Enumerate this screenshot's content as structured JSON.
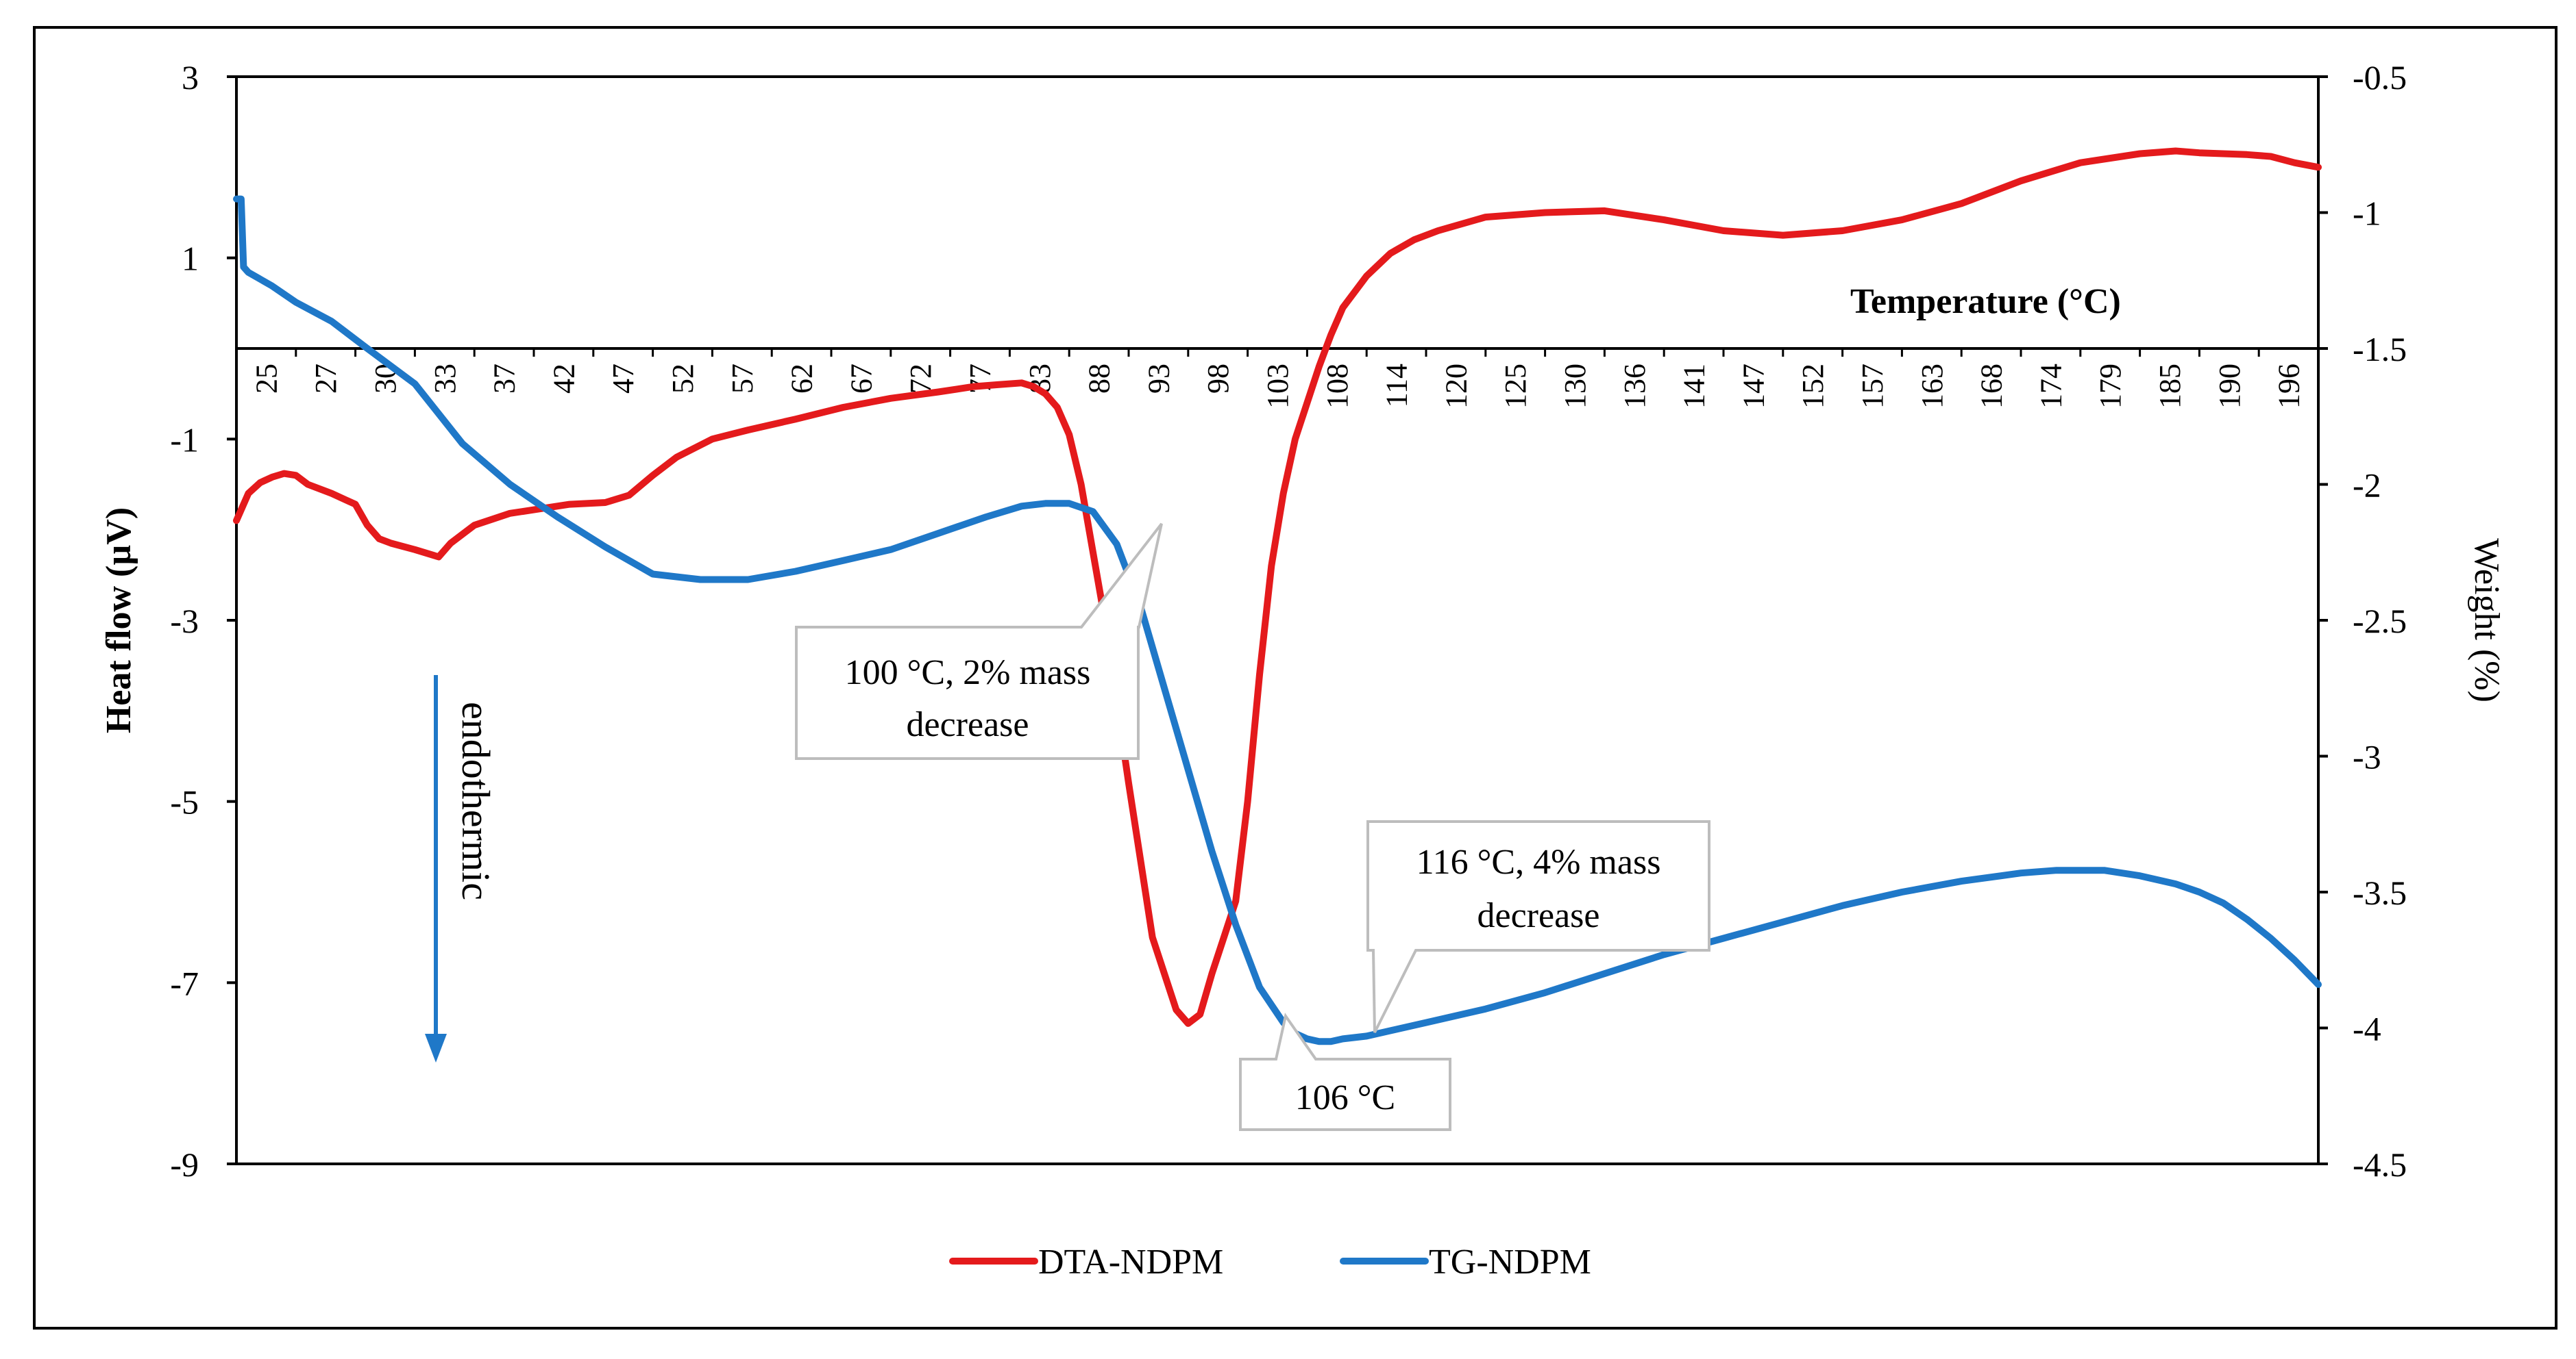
{
  "chart_data": {
    "type": "line",
    "xlabel": "Temperature (°C)",
    "ylabel_left": "Heat flow (µV)",
    "ylabel_right": "Weight (%)",
    "ylim_left": [
      -9,
      3
    ],
    "ylim_right": [
      -4.5,
      -0.5
    ],
    "y_ticks_left": [
      "3",
      "1",
      "-1",
      "-3",
      "-5",
      "-7",
      "-9"
    ],
    "y_ticks_right": [
      "-0.5",
      "-1",
      "-1.5",
      "-2",
      "-2.5",
      "-3",
      "-3.5",
      "-4",
      "-4.5"
    ],
    "x_tick_labels": [
      "25",
      "27",
      "30",
      "33",
      "37",
      "42",
      "47",
      "52",
      "57",
      "62",
      "67",
      "72",
      "77",
      "83",
      "88",
      "93",
      "98",
      "103",
      "108",
      "114",
      "120",
      "125",
      "130",
      "136",
      "141",
      "147",
      "152",
      "157",
      "163",
      "168",
      "174",
      "179",
      "185",
      "190",
      "196"
    ],
    "legend_position": "bottom",
    "gridlines": false,
    "series": [
      {
        "name": "DTA-NDPM",
        "axis": "left",
        "color": "#e41a1c",
        "x": [
          25,
          26,
          27,
          28,
          29,
          30,
          31,
          33,
          35,
          36,
          37,
          38,
          40,
          42,
          43,
          45,
          48,
          50,
          53,
          56,
          58,
          60,
          62,
          65,
          68,
          72,
          76,
          80,
          84,
          87,
          89,
          91,
          92,
          93,
          94,
          95,
          96,
          98,
          100,
          102,
          104,
          105,
          106,
          107,
          108,
          109,
          110,
          111,
          112,
          113,
          114,
          115,
          116,
          117,
          118,
          120,
          122,
          124,
          126,
          130,
          135,
          140,
          145,
          150,
          155,
          160,
          165,
          170,
          175,
          180,
          185,
          188,
          190,
          192,
          194,
          196,
          198,
          200
        ],
        "y": [
          -1.9,
          -1.6,
          -1.48,
          -1.42,
          -1.38,
          -1.4,
          -1.5,
          -1.6,
          -1.72,
          -1.95,
          -2.1,
          -2.15,
          -2.22,
          -2.3,
          -2.15,
          -1.95,
          -1.82,
          -1.78,
          -1.72,
          -1.7,
          -1.62,
          -1.4,
          -1.2,
          -1.0,
          -0.9,
          -0.78,
          -0.65,
          -0.55,
          -0.48,
          -0.42,
          -0.4,
          -0.38,
          -0.42,
          -0.5,
          -0.65,
          -0.95,
          -1.5,
          -3.0,
          -4.8,
          -6.5,
          -7.3,
          -7.45,
          -7.35,
          -6.9,
          -6.5,
          -6.1,
          -5.0,
          -3.6,
          -2.4,
          -1.6,
          -1.0,
          -0.6,
          -0.2,
          0.15,
          0.45,
          0.8,
          1.05,
          1.2,
          1.3,
          1.45,
          1.5,
          1.52,
          1.42,
          1.3,
          1.25,
          1.3,
          1.42,
          1.6,
          1.85,
          2.05,
          2.15,
          2.18,
          2.16,
          2.15,
          2.14,
          2.12,
          2.05,
          2.0
        ]
      },
      {
        "name": "TG-NDPM",
        "axis": "right",
        "color": "#1f78c8",
        "x": [
          25,
          25.4,
          25.6,
          26,
          28,
          30,
          33,
          36,
          40,
          44,
          48,
          52,
          56,
          60,
          64,
          68,
          72,
          76,
          80,
          84,
          88,
          91,
          93,
          95,
          97,
          99,
          101,
          103,
          105,
          107,
          109,
          111,
          113,
          114,
          115,
          116,
          117,
          118,
          120,
          125,
          130,
          135,
          140,
          145,
          150,
          155,
          160,
          165,
          170,
          175,
          178,
          180,
          182,
          185,
          188,
          190,
          192,
          194,
          196,
          198,
          200
        ],
        "y": [
          -0.95,
          -0.95,
          -1.2,
          -1.22,
          -1.27,
          -1.33,
          -1.4,
          -1.5,
          -1.63,
          -1.85,
          -2.0,
          -2.12,
          -2.23,
          -2.33,
          -2.35,
          -2.35,
          -2.32,
          -2.28,
          -2.24,
          -2.18,
          -2.12,
          -2.08,
          -2.07,
          -2.07,
          -2.1,
          -2.22,
          -2.45,
          -2.75,
          -3.05,
          -3.35,
          -3.62,
          -3.85,
          -3.98,
          -4.02,
          -4.04,
          -4.05,
          -4.05,
          -4.04,
          -4.03,
          -3.98,
          -3.93,
          -3.87,
          -3.8,
          -3.73,
          -3.67,
          -3.61,
          -3.55,
          -3.5,
          -3.46,
          -3.43,
          -3.42,
          -3.42,
          -3.42,
          -3.44,
          -3.47,
          -3.5,
          -3.54,
          -3.6,
          -3.67,
          -3.75,
          -3.84
        ]
      }
    ],
    "annotations": [
      {
        "lines": [
          "100 °C, 2% mass",
          "decrease"
        ]
      },
      {
        "lines": [
          "106 °C"
        ]
      },
      {
        "lines": [
          "116 °C, 4% mass",
          "decrease"
        ]
      }
    ],
    "arrow_label": "endothermic"
  }
}
